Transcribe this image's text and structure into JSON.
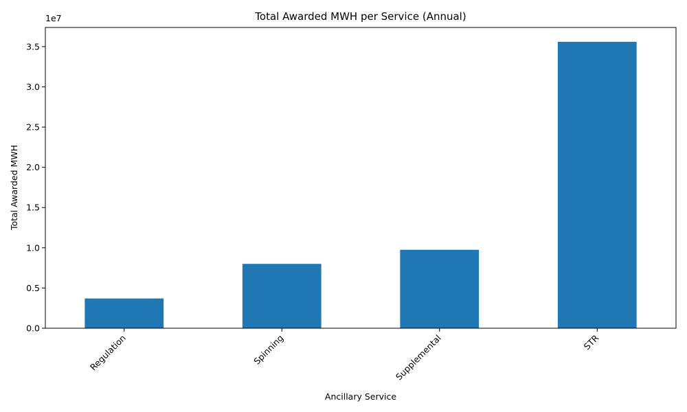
{
  "chart_data": {
    "type": "bar",
    "title": "Total Awarded MWH per Service (Annual)",
    "xlabel": "Ancillary Service",
    "ylabel": "Total Awarded MWH",
    "categories": [
      "Regulation",
      "Spinning",
      "Supplemental",
      "STR"
    ],
    "values": [
      3700000,
      8000000,
      9750000,
      35600000
    ],
    "ylim": [
      0,
      37380000
    ],
    "y_scale_factor": 10000000,
    "y_offset_text": "1e7",
    "y_ticks": [
      0,
      5000000,
      10000000,
      15000000,
      20000000,
      25000000,
      30000000,
      35000000
    ],
    "y_tick_labels": [
      "0.0",
      "0.5",
      "1.0",
      "1.5",
      "2.0",
      "2.5",
      "3.0",
      "3.5"
    ],
    "bar_color": "#1f77b4",
    "grid": false,
    "legend": "none",
    "x_tick_rotation": 45
  }
}
